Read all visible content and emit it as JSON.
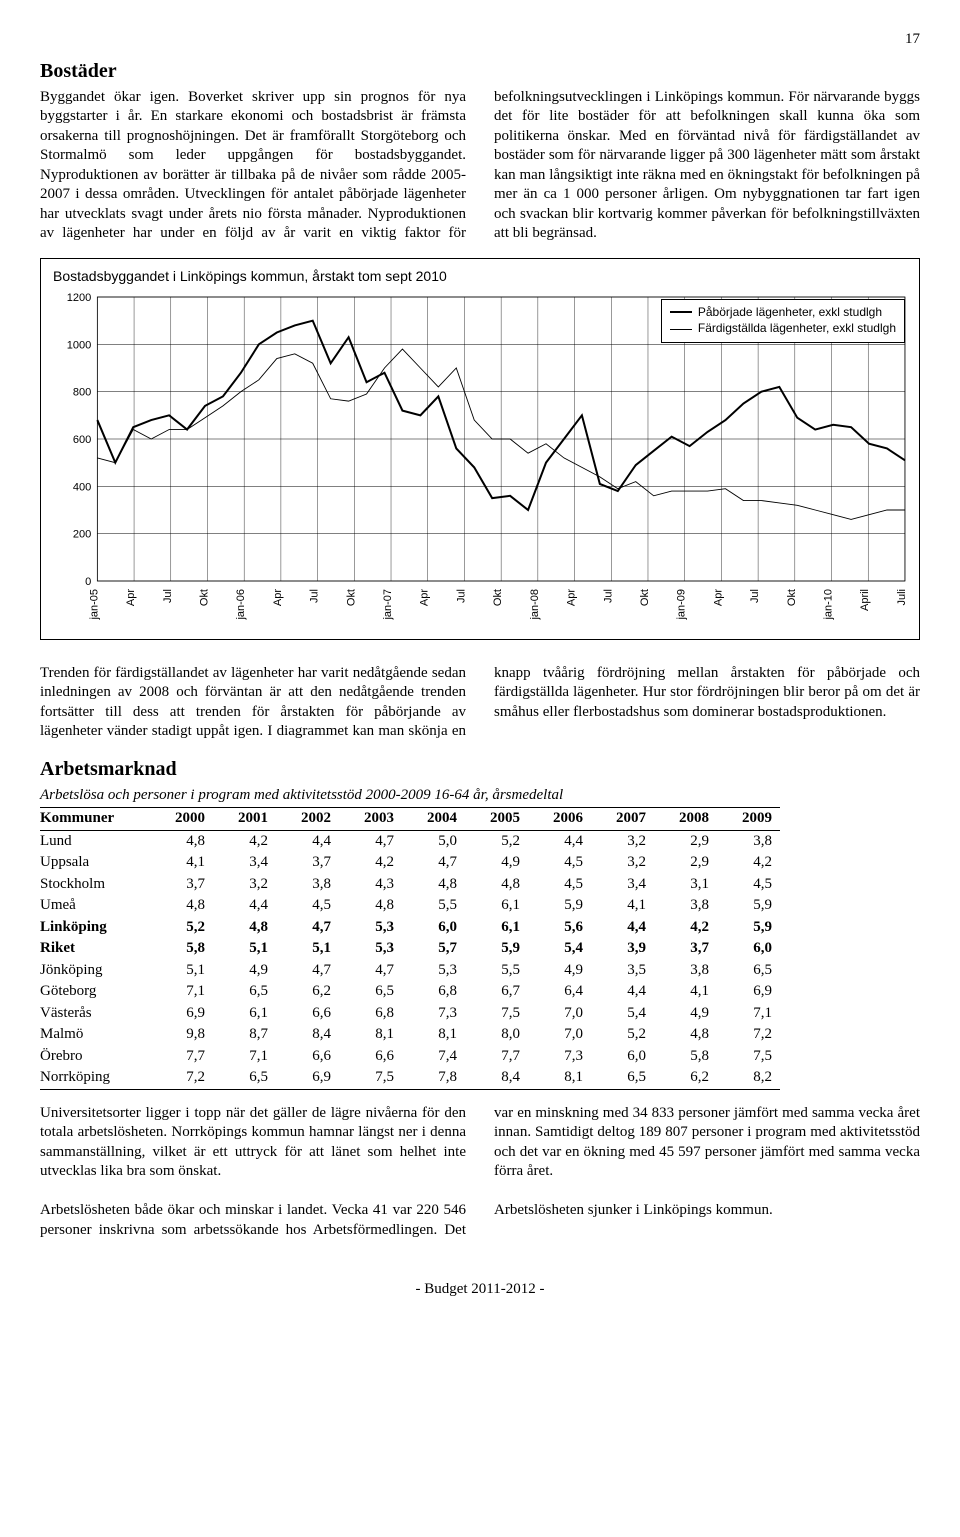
{
  "page_number": "17",
  "section1": {
    "title": "Bostäder",
    "body": "Byggandet ökar igen. Boverket skriver upp sin prognos för nya byggstarter i år. En starkare ekonomi och bostadsbrist är främsta orsakerna till prognoshöjningen. Det är framförallt Storgöteborg och Stormalmö som leder uppgången för bostadsbyggandet. Nyproduktionen av borätter är tillbaka på de nivåer som rådde 2005-2007 i dessa områden. Utvecklingen för antalet påbörjade lägenheter har utvecklats svagt under årets nio första månader. Nyproduktionen av lägenheter har under en följd av år varit en viktig faktor för befolkningsutvecklingen i Linköpings kommun. För närvarande byggs det för lite bostäder för att befolkningen skall kunna öka som politikerna önskar. Med en förväntad nivå för färdigställandet av bostäder som för närvarande ligger på 300 lägenheter mätt som årstakt kan man långsiktigt inte räkna med en ökningstakt för befolkningen på mer än ca 1 000 personer årligen. Om nybyggnationen tar fart igen och svackan blir kortvarig kommer påverkan för befolkningstillväxten att bli begränsad."
  },
  "chart": {
    "type": "line",
    "title": "Bostadsbyggandet i Linköpings kommun, årstakt tom sept 2010",
    "legend": [
      {
        "label": "Påbörjade lägenheter, exkl studlgh",
        "color": "#000000",
        "width": 2
      },
      {
        "label": "Färdigställda lägenheter, exkl studlgh",
        "color": "#000000",
        "width": 1
      }
    ],
    "ylim": [
      0,
      1200
    ],
    "ytick_step": 200,
    "yticks": [
      "0",
      "200",
      "400",
      "600",
      "800",
      "1000",
      "1200"
    ],
    "xlabels": [
      "jan-05",
      "Apr",
      "Jul",
      "Okt",
      "jan-06",
      "Apr",
      "Jul",
      "Okt",
      "jan-07",
      "Apr",
      "Jul",
      "Okt",
      "jan-08",
      "Apr",
      "Jul",
      "Okt",
      "jan-09",
      "Apr",
      "Jul",
      "Okt",
      "jan-10",
      "April",
      "Juli"
    ],
    "grid_color": "#000000",
    "background_color": "#ffffff",
    "series_started": [
      680,
      500,
      650,
      680,
      700,
      640,
      740,
      780,
      880,
      1000,
      1050,
      1080,
      1100,
      920,
      1030,
      840,
      880,
      720,
      700,
      780,
      560,
      480,
      350,
      360,
      300,
      500,
      600,
      700,
      410,
      380,
      490,
      550,
      610,
      570,
      630,
      680,
      750,
      800,
      820,
      690,
      640,
      660,
      650,
      580,
      560,
      510
    ],
    "series_finished": [
      520,
      500,
      640,
      600,
      640,
      640,
      690,
      740,
      800,
      850,
      940,
      960,
      920,
      770,
      760,
      790,
      900,
      980,
      900,
      820,
      900,
      680,
      600,
      600,
      540,
      580,
      520,
      480,
      440,
      390,
      420,
      360,
      380,
      380,
      380,
      390,
      340,
      340,
      330,
      320,
      300,
      280,
      260,
      280,
      300,
      300
    ]
  },
  "section_mid": {
    "body": "Trenden för färdigställandet av lägenheter har varit nedåtgående sedan inledningen av 2008 och förväntan är att den nedåtgående trenden fortsätter till dess att trenden för årstakten för påbörjande av lägenheter vänder stadigt uppåt igen. I diagrammet kan man skönja en knapp tvåårig fördröjning mellan årstakten för påbörjade och färdigställda lägenheter. Hur stor fördröjningen blir beror på om det är småhus eller flerbostadshus som dominerar bostadsproduktionen."
  },
  "section2": {
    "title": "Arbetsmarknad",
    "table_title": "Arbetslösa och personer i program med aktivitetsstöd 2000-2009 16-64 år, årsmedeltal",
    "columns": [
      "Kommuner",
      "2000",
      "2001",
      "2002",
      "2003",
      "2004",
      "2005",
      "2006",
      "2007",
      "2008",
      "2009"
    ],
    "rows": [
      {
        "bold": false,
        "cells": [
          "Lund",
          "4,8",
          "4,2",
          "4,4",
          "4,7",
          "5,0",
          "5,2",
          "4,4",
          "3,2",
          "2,9",
          "3,8"
        ]
      },
      {
        "bold": false,
        "cells": [
          "Uppsala",
          "4,1",
          "3,4",
          "3,7",
          "4,2",
          "4,7",
          "4,9",
          "4,5",
          "3,2",
          "2,9",
          "4,2"
        ]
      },
      {
        "bold": false,
        "cells": [
          "Stockholm",
          "3,7",
          "3,2",
          "3,8",
          "4,3",
          "4,8",
          "4,8",
          "4,5",
          "3,4",
          "3,1",
          "4,5"
        ]
      },
      {
        "bold": false,
        "cells": [
          "Umeå",
          "4,8",
          "4,4",
          "4,5",
          "4,8",
          "5,5",
          "6,1",
          "5,9",
          "4,1",
          "3,8",
          "5,9"
        ]
      },
      {
        "bold": true,
        "cells": [
          "Linköping",
          "5,2",
          "4,8",
          "4,7",
          "5,3",
          "6,0",
          "6,1",
          "5,6",
          "4,4",
          "4,2",
          "5,9"
        ]
      },
      {
        "bold": true,
        "cells": [
          "Riket",
          "5,8",
          "5,1",
          "5,1",
          "5,3",
          "5,7",
          "5,9",
          "5,4",
          "3,9",
          "3,7",
          "6,0"
        ]
      },
      {
        "bold": false,
        "cells": [
          "Jönköping",
          "5,1",
          "4,9",
          "4,7",
          "4,7",
          "5,3",
          "5,5",
          "4,9",
          "3,5",
          "3,8",
          "6,5"
        ]
      },
      {
        "bold": false,
        "cells": [
          "Göteborg",
          "7,1",
          "6,5",
          "6,2",
          "6,5",
          "6,8",
          "6,7",
          "6,4",
          "4,4",
          "4,1",
          "6,9"
        ]
      },
      {
        "bold": false,
        "cells": [
          "Västerås",
          "6,9",
          "6,1",
          "6,6",
          "6,8",
          "7,3",
          "7,5",
          "7,0",
          "5,4",
          "4,9",
          "7,1"
        ]
      },
      {
        "bold": false,
        "cells": [
          "Malmö",
          "9,8",
          "8,7",
          "8,4",
          "8,1",
          "8,1",
          "8,0",
          "7,0",
          "5,2",
          "4,8",
          "7,2"
        ]
      },
      {
        "bold": false,
        "cells": [
          "Örebro",
          "7,7",
          "7,1",
          "6,6",
          "6,6",
          "7,4",
          "7,7",
          "7,3",
          "6,0",
          "5,8",
          "7,5"
        ]
      },
      {
        "bold": false,
        "cells": [
          "Norrköping",
          "7,2",
          "6,5",
          "6,9",
          "7,5",
          "7,8",
          "8,4",
          "8,1",
          "6,5",
          "6,2",
          "8,2"
        ]
      }
    ],
    "col1": "Universitetsorter ligger i topp när det gäller de lägre nivåerna för den totala arbetslösheten. Norrköpings kommun hamnar längst ner i denna sammanställning, vilket är ett uttryck för att länet som helhet inte utvecklas lika bra som önskat.\n\nArbetslösheten både ökar och minskar i landet. Vecka 41 var 220 546 personer inskrivna som arbetssökande",
    "col2": "hos Arbetsförmedlingen. Det var en minskning med 34 833 personer jämfört med samma vecka året innan. Samtidigt deltog 189 807 personer i program med aktivitetsstöd och det var en ökning med 45 597 personer jämfört med samma vecka förra året.\n\nArbetslösheten sjunker i Linköpings kommun."
  },
  "footer": "- Budget 2011-2012 -"
}
